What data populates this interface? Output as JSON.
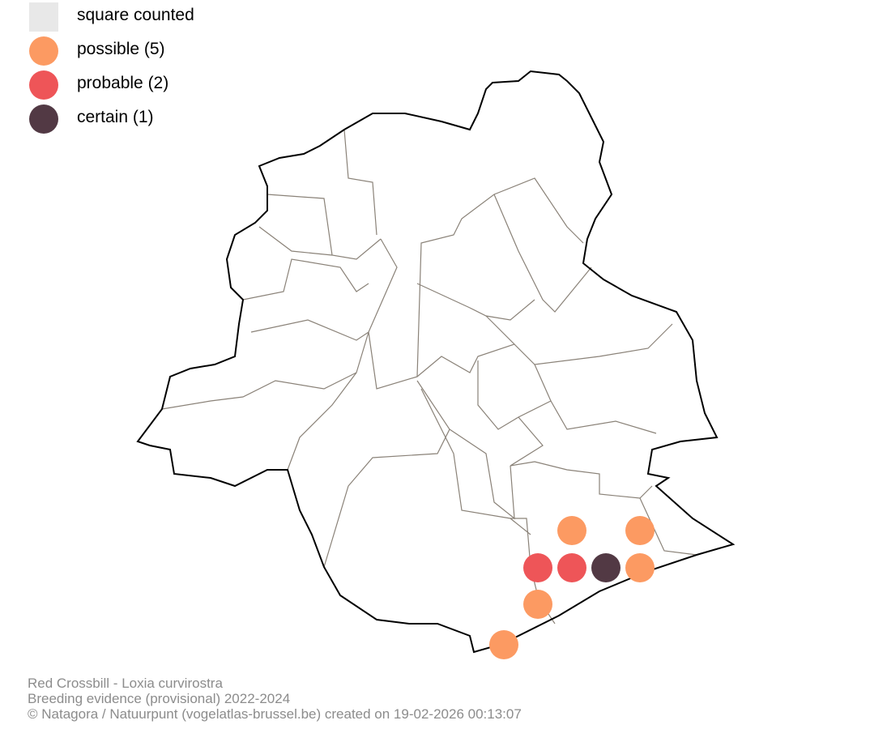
{
  "legend": {
    "items": [
      {
        "label": "square counted",
        "shape": "square",
        "color": "#e8e8e8"
      },
      {
        "label": "possible (5)",
        "shape": "circle",
        "color": "#fc9a62",
        "count": 5
      },
      {
        "label": "probable (2)",
        "shape": "circle",
        "color": "#ee5558",
        "count": 2
      },
      {
        "label": "certain (1)",
        "shape": "circle",
        "color": "#523944",
        "count": 1
      }
    ]
  },
  "caption": {
    "line1": "Red Crossbill - Loxia curvirostra",
    "line2": "Breeding evidence (provisional) 2022-2024",
    "line3": "© Natagora / Natuurpunt (vogelatlas-brussel.be) created on 19-02-2026 00:13:07"
  },
  "colors": {
    "outline": "#000000",
    "communes": "#8a8278",
    "possible": "#fc9a62",
    "probable": "#ee5558",
    "certain": "#523944"
  }
}
